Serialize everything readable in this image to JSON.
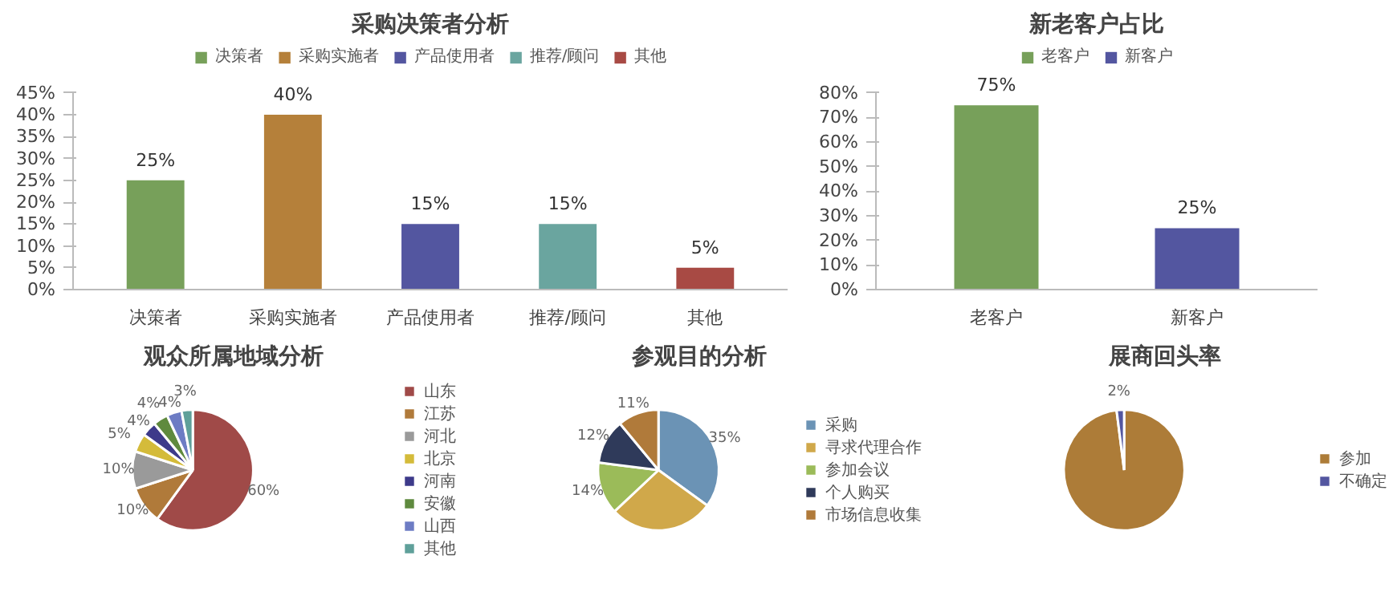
{
  "chart_data": [
    {
      "type": "bar",
      "title": "采购决策者分析",
      "categories": [
        "决策者",
        "采购实施者",
        "产品使用者",
        "推荐/顾问",
        "其他"
      ],
      "series": [
        {
          "name": "决策者",
          "color": "#77a05a",
          "values": [
            25,
            null,
            null,
            null,
            null
          ],
          "value_labels": [
            "25%",
            null,
            null,
            null,
            null
          ]
        },
        {
          "name": "采购实施者",
          "color": "#b5803a",
          "values": [
            null,
            40,
            null,
            null,
            null
          ],
          "value_labels": [
            null,
            "40%",
            null,
            null,
            null
          ]
        },
        {
          "name": "产品使用者",
          "color": "#5356a0",
          "values": [
            null,
            null,
            15,
            null,
            null
          ],
          "value_labels": [
            null,
            null,
            "15%",
            null,
            null
          ]
        },
        {
          "name": "推荐/顾问",
          "color": "#6aa59f",
          "values": [
            null,
            null,
            null,
            15,
            null
          ],
          "value_labels": [
            null,
            null,
            null,
            "15%",
            null
          ]
        },
        {
          "name": "其他",
          "color": "#a84a44",
          "values": [
            null,
            null,
            null,
            null,
            5
          ],
          "value_labels": [
            null,
            null,
            null,
            null,
            "5%"
          ]
        }
      ],
      "ylim": [
        0,
        45
      ],
      "yticks": [
        {
          "value": 0,
          "label": "0%"
        },
        {
          "value": 5,
          "label": "5%"
        },
        {
          "value": 10,
          "label": "10%"
        },
        {
          "value": 15,
          "label": "15%"
        },
        {
          "value": 20,
          "label": "20%"
        },
        {
          "value": 25,
          "label": "25%"
        },
        {
          "value": 30,
          "label": "30%"
        },
        {
          "value": 35,
          "label": "35%"
        },
        {
          "value": 40,
          "label": "40%"
        },
        {
          "value": 45,
          "label": "45%"
        }
      ],
      "legend": "top"
    },
    {
      "type": "bar",
      "title": "新老客户占比",
      "categories": [
        "老客户",
        "新客户"
      ],
      "series": [
        {
          "name": "老客户",
          "color": "#77a05a",
          "values": [
            75,
            null
          ],
          "value_labels": [
            "75%",
            null
          ]
        },
        {
          "name": "新客户",
          "color": "#5356a0",
          "values": [
            null,
            25
          ],
          "value_labels": [
            null,
            "25%"
          ]
        }
      ],
      "ylim": [
        0,
        80
      ],
      "yticks": [
        {
          "value": 0,
          "label": "0%"
        },
        {
          "value": 10,
          "label": "10%"
        },
        {
          "value": 20,
          "label": "20%"
        },
        {
          "value": 30,
          "label": "30%"
        },
        {
          "value": 40,
          "label": "40%"
        },
        {
          "value": 50,
          "label": "50%"
        },
        {
          "value": 60,
          "label": "60%"
        },
        {
          "value": 70,
          "label": "70%"
        },
        {
          "value": 80,
          "label": "80%"
        }
      ],
      "legend": "top"
    },
    {
      "type": "pie",
      "title": "观众所属地域分析",
      "categories": [
        "山东",
        "江苏",
        "河北",
        "北京",
        "河南",
        "安徽",
        "山西",
        "其他"
      ],
      "values": [
        60,
        10,
        10,
        5,
        4,
        4,
        4,
        3
      ],
      "colors": [
        "#a04a48",
        "#b07a3a",
        "#9a9a9a",
        "#d4bb3a",
        "#3d3a8a",
        "#5f8a3e",
        "#6d7cc4",
        "#5fa09a"
      ],
      "value_labels": [
        "60%",
        "10%",
        "10%",
        "5%",
        "4%",
        "4%",
        "4%",
        "3%"
      ],
      "legend": "right"
    },
    {
      "type": "pie",
      "title": "参观目的分析",
      "categories": [
        "采购",
        "寻求代理合作",
        "参加会议",
        "个人购买",
        "市场信息收集"
      ],
      "values": [
        35,
        28,
        14,
        12,
        11
      ],
      "colors": [
        "#6b93b5",
        "#d0a84a",
        "#9bbb59",
        "#2f3a5a",
        "#b07a3a"
      ],
      "value_labels": [
        "35%",
        null,
        "14%",
        "12%",
        "11%"
      ],
      "legend": "right"
    },
    {
      "type": "pie",
      "title": "展商回头率",
      "categories": [
        "参加",
        "不确定"
      ],
      "values": [
        98,
        2
      ],
      "colors": [
        "#ad7c38",
        "#5356a0"
      ],
      "value_labels": [
        null,
        "2%"
      ],
      "legend": "right"
    }
  ]
}
